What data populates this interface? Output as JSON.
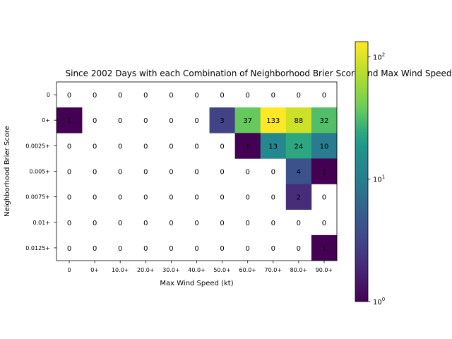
{
  "chart_data": {
    "type": "heatmap",
    "title": "Since 2002 Days with each Combination of Neighborhood Brier Score and Max Wind Speed",
    "xlabel": "Max Wind Speed (kt)",
    "ylabel": "Neighborhood Brier Score",
    "x_categories": [
      "0",
      "0+",
      "10.0+",
      "20.0+",
      "30.0+",
      "40.0+",
      "50.0+",
      "60.0+",
      "70.0+",
      "80.0+",
      "90.0+"
    ],
    "y_categories": [
      "0",
      "0+",
      "0.0025+",
      "0.005+",
      "0.0075+",
      "0.01+",
      "0.0125+"
    ],
    "values": [
      [
        0,
        0,
        0,
        0,
        0,
        0,
        0,
        0,
        0,
        0,
        0
      ],
      [
        1,
        0,
        0,
        0,
        0,
        0,
        3,
        37,
        133,
        88,
        32
      ],
      [
        0,
        0,
        0,
        0,
        0,
        0,
        0,
        1,
        13,
        24,
        10
      ],
      [
        0,
        0,
        0,
        0,
        0,
        0,
        0,
        0,
        0,
        4,
        1
      ],
      [
        0,
        0,
        0,
        0,
        0,
        0,
        0,
        0,
        0,
        2,
        0
      ],
      [
        0,
        0,
        0,
        0,
        0,
        0,
        0,
        0,
        0,
        0,
        0
      ],
      [
        0,
        0,
        0,
        0,
        0,
        0,
        0,
        0,
        0,
        0,
        1
      ]
    ],
    "colorscale": "viridis",
    "color_scale_type": "log",
    "zero_cells": "white (not colored)",
    "colorbar": {
      "range": [
        1,
        133
      ],
      "ticks": [
        {
          "value": 1,
          "label": "10",
          "exp": "0"
        },
        {
          "value": 10,
          "label": "10",
          "exp": "1"
        },
        {
          "value": 100,
          "label": "10",
          "exp": "2"
        }
      ]
    },
    "grid": false
  }
}
